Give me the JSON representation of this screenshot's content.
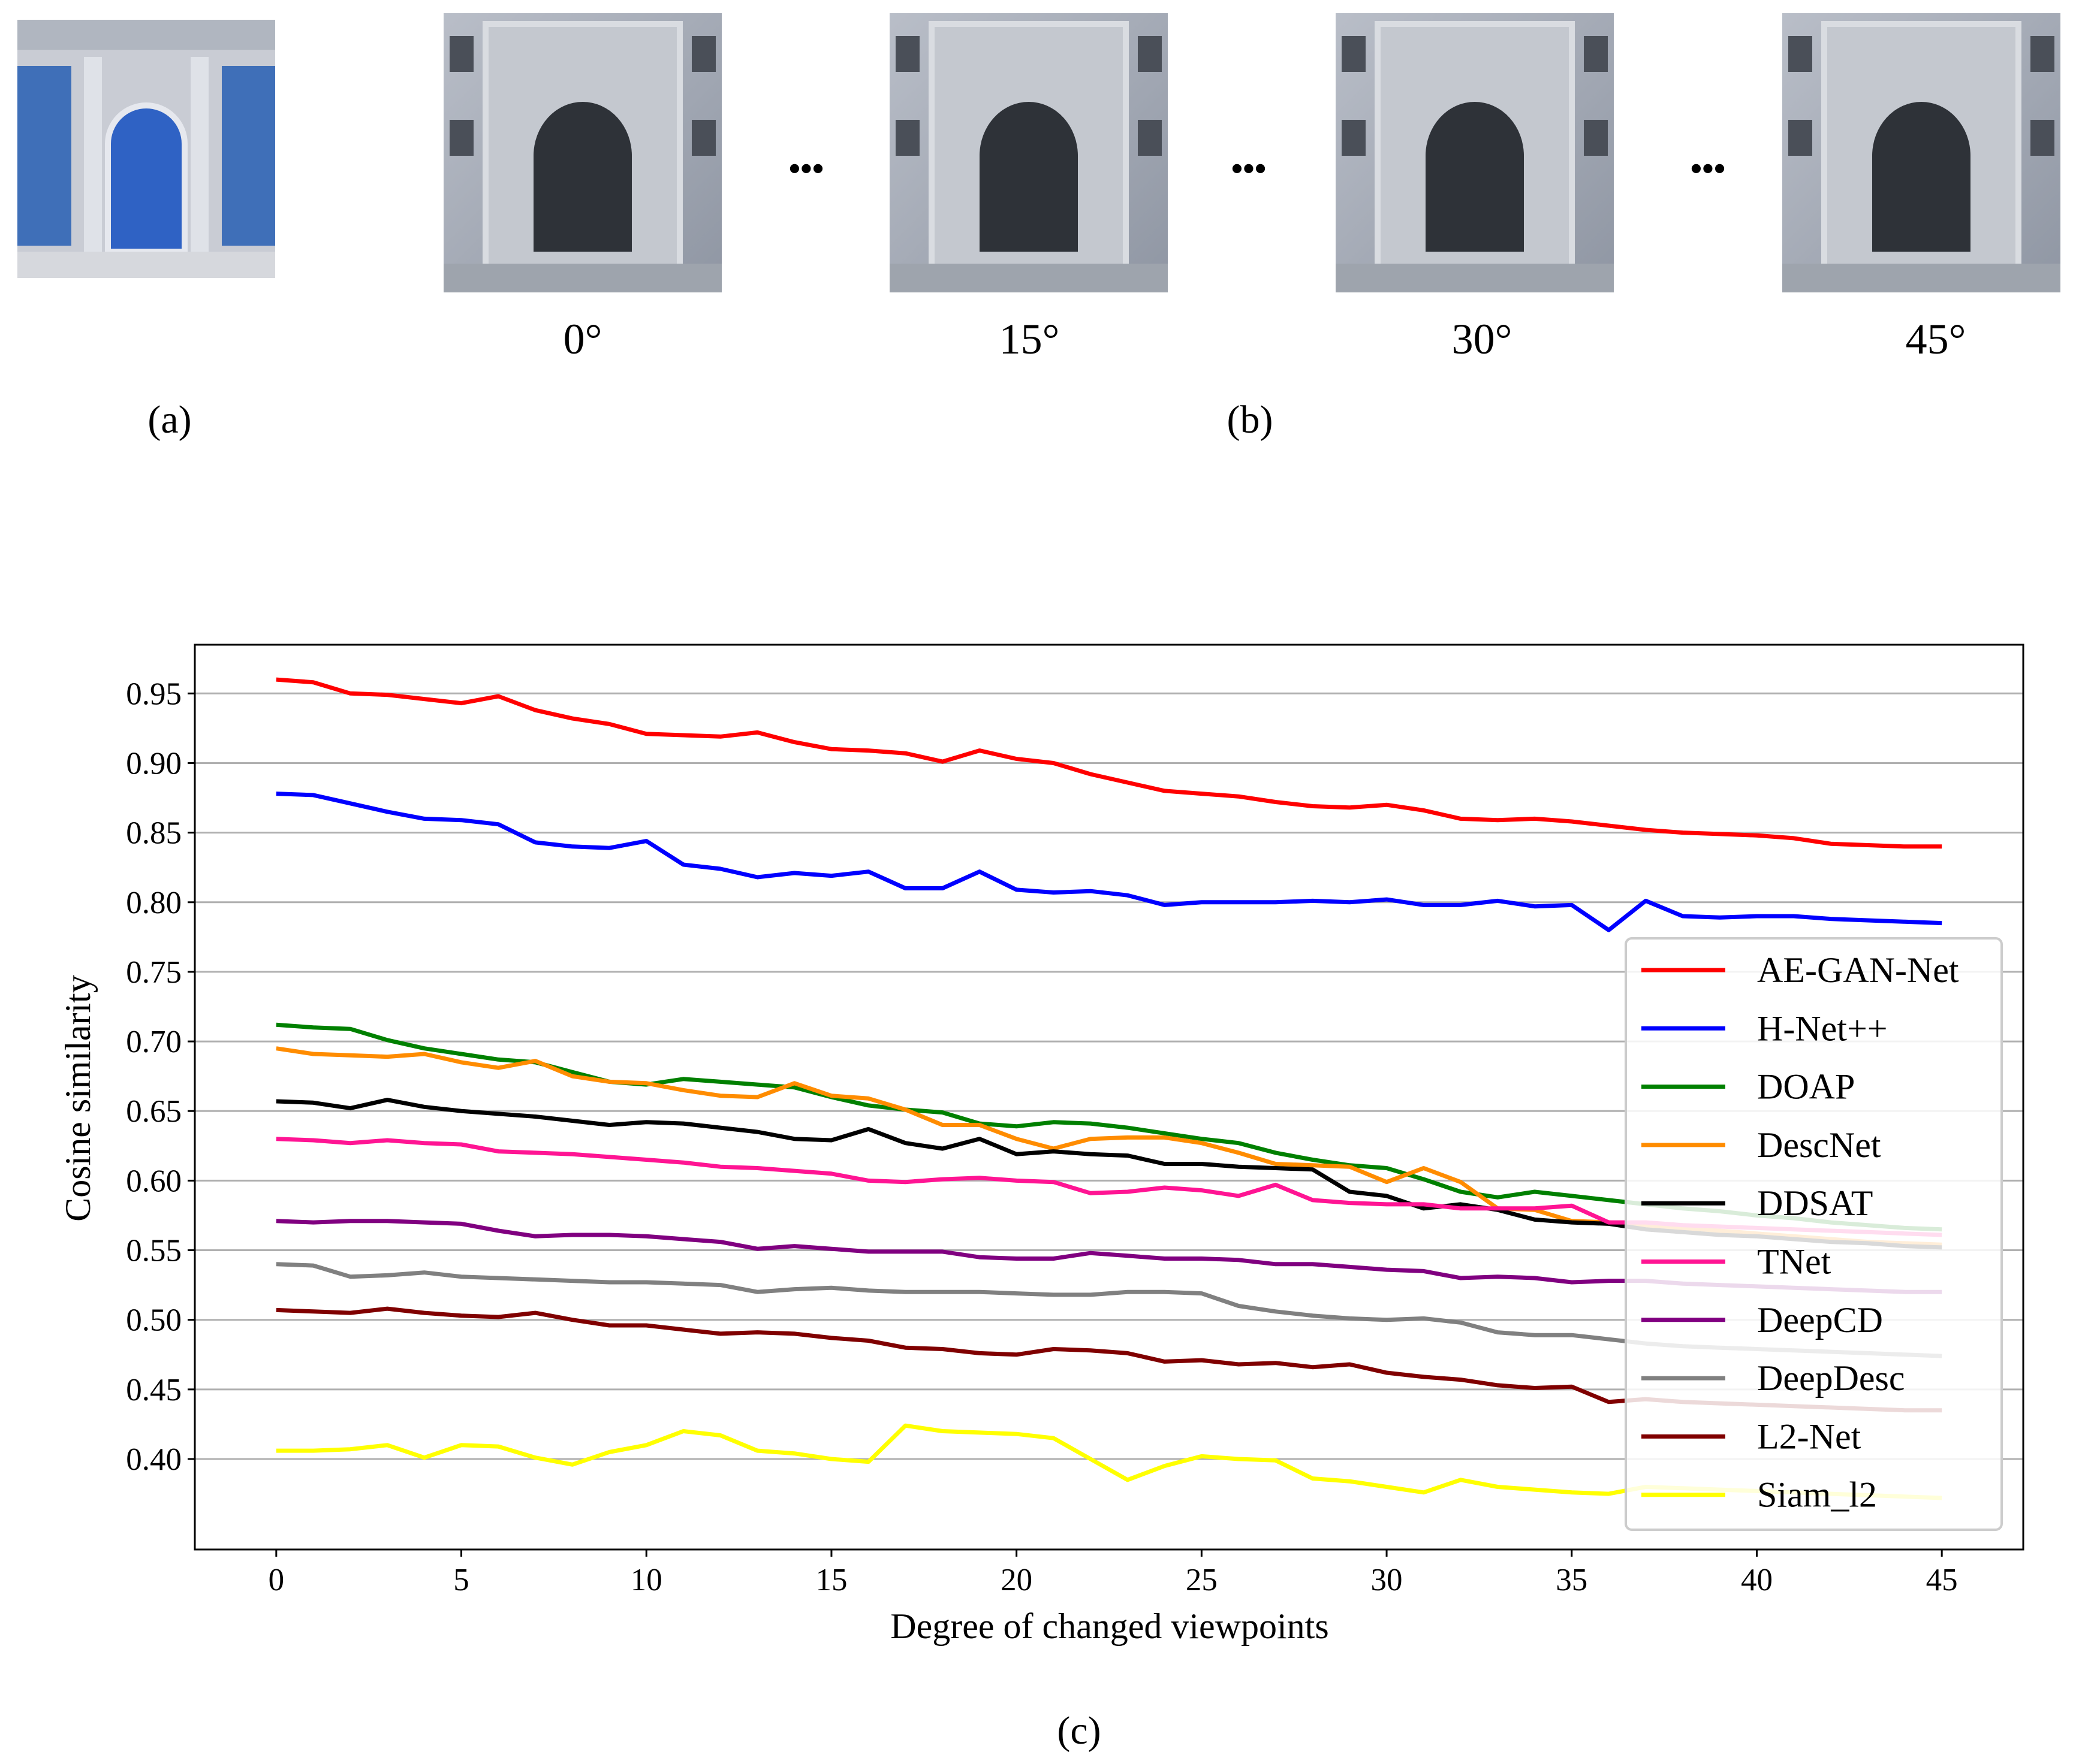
{
  "panels": {
    "a_label": "(a)",
    "b_label": "(b)",
    "c_label": "(c)",
    "ellipsis": "•••",
    "angle_labels": [
      "0°",
      "15°",
      "30°",
      "45°"
    ]
  },
  "colors": {
    "AE-GAN-Net": "#ff0000",
    "H-Net++": "#0000ff",
    "DOAP": "#008000",
    "DescNet": "#ff8c00",
    "DDSAT": "#000000",
    "TNet": "#ff1493",
    "DeepCD": "#800080",
    "DeepDesc": "#808080",
    "L2-Net": "#800000",
    "Siam_l2": "#ffff00"
  },
  "chart_data": {
    "type": "line",
    "title": "",
    "xlabel": "Degree of changed viewpoints",
    "ylabel": "Cosine similarity",
    "xlim": [
      -2.2,
      47.2
    ],
    "ylim": [
      0.335,
      0.985
    ],
    "xticks": [
      0,
      5,
      10,
      15,
      20,
      25,
      30,
      35,
      40,
      45
    ],
    "yticks": [
      "0.40",
      "0.45",
      "0.50",
      "0.55",
      "0.60",
      "0.65",
      "0.70",
      "0.75",
      "0.80",
      "0.85",
      "0.90",
      "0.95"
    ],
    "grid": "horizontal",
    "legend_position": "right",
    "x": [
      0,
      1,
      2,
      3,
      4,
      5,
      6,
      7,
      8,
      9,
      10,
      11,
      12,
      13,
      14,
      15,
      16,
      17,
      18,
      19,
      20,
      21,
      22,
      23,
      24,
      25,
      26,
      27,
      28,
      29,
      30,
      31,
      32,
      33,
      34,
      35,
      36,
      37,
      38,
      39,
      40,
      41,
      42,
      43,
      44,
      45
    ],
    "series": [
      {
        "name": "AE-GAN-Net",
        "values": [
          0.96,
          0.958,
          0.95,
          0.949,
          0.946,
          0.943,
          0.948,
          0.938,
          0.932,
          0.928,
          0.921,
          0.92,
          0.919,
          0.922,
          0.915,
          0.91,
          0.909,
          0.907,
          0.901,
          0.909,
          0.903,
          0.9,
          0.892,
          0.886,
          0.88,
          0.878,
          0.876,
          0.872,
          0.869,
          0.868,
          0.87,
          0.866,
          0.86,
          0.859,
          0.86,
          0.858,
          0.855,
          0.852,
          0.85,
          0.849,
          0.848,
          0.846,
          0.842,
          0.841,
          0.84,
          0.84
        ]
      },
      {
        "name": "H-Net++",
        "values": [
          0.878,
          0.877,
          0.871,
          0.865,
          0.86,
          0.859,
          0.856,
          0.843,
          0.84,
          0.839,
          0.844,
          0.827,
          0.824,
          0.818,
          0.821,
          0.819,
          0.822,
          0.81,
          0.81,
          0.822,
          0.809,
          0.807,
          0.808,
          0.805,
          0.798,
          0.8,
          0.8,
          0.8,
          0.801,
          0.8,
          0.802,
          0.798,
          0.798,
          0.801,
          0.797,
          0.798,
          0.78,
          0.801,
          0.79,
          0.789,
          0.79,
          0.79,
          0.788,
          0.787,
          0.786,
          0.785
        ]
      },
      {
        "name": "DOAP",
        "values": [
          0.712,
          0.71,
          0.709,
          0.701,
          0.695,
          0.691,
          0.687,
          0.685,
          0.678,
          0.671,
          0.669,
          0.673,
          0.671,
          0.669,
          0.667,
          0.66,
          0.654,
          0.651,
          0.649,
          0.641,
          0.639,
          0.642,
          0.641,
          0.638,
          0.634,
          0.63,
          0.627,
          0.62,
          0.615,
          0.611,
          0.609,
          0.601,
          0.592,
          0.588,
          0.592,
          0.589,
          0.586,
          0.583,
          0.58,
          0.578,
          0.575,
          0.573,
          0.57,
          0.568,
          0.566,
          0.565
        ]
      },
      {
        "name": "DescNet",
        "values": [
          0.695,
          0.691,
          0.69,
          0.689,
          0.691,
          0.685,
          0.681,
          0.686,
          0.675,
          0.671,
          0.67,
          0.665,
          0.661,
          0.66,
          0.67,
          0.661,
          0.659,
          0.651,
          0.64,
          0.64,
          0.63,
          0.623,
          0.63,
          0.631,
          0.631,
          0.627,
          0.62,
          0.612,
          0.611,
          0.61,
          0.599,
          0.609,
          0.599,
          0.58,
          0.579,
          0.571,
          0.57,
          0.568,
          0.566,
          0.564,
          0.562,
          0.56,
          0.558,
          0.556,
          0.555,
          0.554
        ]
      },
      {
        "name": "DDSAT",
        "values": [
          0.657,
          0.656,
          0.652,
          0.658,
          0.653,
          0.65,
          0.648,
          0.646,
          0.643,
          0.64,
          0.642,
          0.641,
          0.638,
          0.635,
          0.63,
          0.629,
          0.637,
          0.627,
          0.623,
          0.63,
          0.619,
          0.621,
          0.619,
          0.618,
          0.612,
          0.612,
          0.61,
          0.609,
          0.608,
          0.592,
          0.589,
          0.58,
          0.583,
          0.579,
          0.572,
          0.57,
          0.569,
          0.565,
          0.563,
          0.561,
          0.56,
          0.558,
          0.556,
          0.555,
          0.553,
          0.552
        ]
      },
      {
        "name": "TNet",
        "values": [
          0.63,
          0.629,
          0.627,
          0.629,
          0.627,
          0.626,
          0.621,
          0.62,
          0.619,
          0.617,
          0.615,
          0.613,
          0.61,
          0.609,
          0.607,
          0.605,
          0.6,
          0.599,
          0.601,
          0.602,
          0.6,
          0.599,
          0.591,
          0.592,
          0.595,
          0.593,
          0.589,
          0.597,
          0.586,
          0.584,
          0.583,
          0.583,
          0.58,
          0.58,
          0.58,
          0.582,
          0.57,
          0.57,
          0.568,
          0.567,
          0.566,
          0.565,
          0.564,
          0.563,
          0.562,
          0.561
        ]
      },
      {
        "name": "DeepCD",
        "values": [
          0.571,
          0.57,
          0.571,
          0.571,
          0.57,
          0.569,
          0.564,
          0.56,
          0.561,
          0.561,
          0.56,
          0.558,
          0.556,
          0.551,
          0.553,
          0.551,
          0.549,
          0.549,
          0.549,
          0.545,
          0.544,
          0.544,
          0.548,
          0.546,
          0.544,
          0.544,
          0.543,
          0.54,
          0.54,
          0.538,
          0.536,
          0.535,
          0.53,
          0.531,
          0.53,
          0.527,
          0.528,
          0.528,
          0.526,
          0.525,
          0.524,
          0.523,
          0.522,
          0.521,
          0.52,
          0.52
        ]
      },
      {
        "name": "DeepDesc",
        "values": [
          0.54,
          0.539,
          0.531,
          0.532,
          0.534,
          0.531,
          0.53,
          0.529,
          0.528,
          0.527,
          0.527,
          0.526,
          0.525,
          0.52,
          0.522,
          0.523,
          0.521,
          0.52,
          0.52,
          0.52,
          0.519,
          0.518,
          0.518,
          0.52,
          0.52,
          0.519,
          0.51,
          0.506,
          0.503,
          0.501,
          0.5,
          0.501,
          0.498,
          0.491,
          0.489,
          0.489,
          0.486,
          0.483,
          0.481,
          0.48,
          0.479,
          0.478,
          0.477,
          0.476,
          0.475,
          0.474
        ]
      },
      {
        "name": "L2-Net",
        "values": [
          0.507,
          0.506,
          0.505,
          0.508,
          0.505,
          0.503,
          0.502,
          0.505,
          0.5,
          0.496,
          0.496,
          0.493,
          0.49,
          0.491,
          0.49,
          0.487,
          0.485,
          0.48,
          0.479,
          0.476,
          0.475,
          0.479,
          0.478,
          0.476,
          0.47,
          0.471,
          0.468,
          0.469,
          0.466,
          0.468,
          0.462,
          0.459,
          0.457,
          0.453,
          0.451,
          0.452,
          0.441,
          0.443,
          0.441,
          0.44,
          0.439,
          0.438,
          0.437,
          0.436,
          0.435,
          0.435
        ]
      },
      {
        "name": "Siam_l2",
        "values": [
          0.406,
          0.406,
          0.407,
          0.41,
          0.401,
          0.41,
          0.409,
          0.401,
          0.396,
          0.405,
          0.41,
          0.42,
          0.417,
          0.406,
          0.404,
          0.4,
          0.398,
          0.424,
          0.42,
          0.419,
          0.418,
          0.415,
          0.4,
          0.385,
          0.395,
          0.402,
          0.4,
          0.399,
          0.386,
          0.384,
          0.38,
          0.376,
          0.385,
          0.38,
          0.378,
          0.376,
          0.375,
          0.38,
          0.379,
          0.378,
          0.377,
          0.376,
          0.375,
          0.374,
          0.373,
          0.372
        ]
      }
    ]
  }
}
